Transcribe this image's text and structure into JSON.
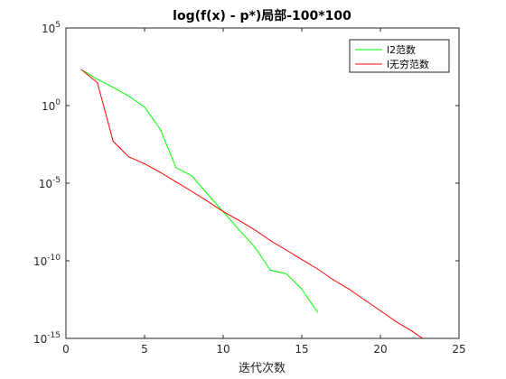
{
  "chart_data": {
    "type": "line",
    "title": "log(f(x) - p*)局部-100*100",
    "xlabel": "迭代次数",
    "ylabel": "",
    "xlim": [
      0,
      25
    ],
    "ylim": [
      1e-15,
      100000.0
    ],
    "yscale": "log",
    "grid": false,
    "legend_position": "top-right",
    "x_ticks": [
      0,
      5,
      10,
      15,
      20,
      25
    ],
    "x_tick_labels": [
      "0",
      "5",
      "10",
      "15",
      "20",
      "25"
    ],
    "y_ticks": [
      100000.0,
      1.0,
      1e-05,
      1e-10,
      1e-15
    ],
    "y_tick_labels": [
      {
        "base": "10",
        "exp": "5"
      },
      {
        "base": "10",
        "exp": "0"
      },
      {
        "base": "10",
        "exp": "-5"
      },
      {
        "base": "10",
        "exp": "-10"
      },
      {
        "base": "10",
        "exp": "-15"
      }
    ],
    "series": [
      {
        "name": "l2范数",
        "color": "#00ff00",
        "x": [
          1,
          2,
          3,
          4,
          5,
          6,
          7,
          8,
          9,
          10,
          11,
          12,
          13,
          14,
          15,
          16
        ],
        "y": [
          200,
          50,
          15,
          4,
          0.8,
          0.03,
          0.0001,
          3e-05,
          2e-06,
          1.5e-07,
          1e-08,
          8e-10,
          2.5e-11,
          1.5e-11,
          1.5e-12,
          5e-14
        ]
      },
      {
        "name": "l无穷范数",
        "color": "#ff0000",
        "x": [
          1,
          2,
          3,
          4,
          5,
          6,
          7,
          8,
          9,
          10,
          11,
          12,
          13,
          14,
          15,
          16,
          17,
          18,
          19,
          20,
          21,
          22,
          23,
          24
        ],
        "y": [
          200,
          30,
          0.005,
          0.0005,
          0.00018,
          5e-05,
          1.2e-05,
          3e-06,
          7e-07,
          1.5e-07,
          4e-08,
          1e-08,
          2e-09,
          5e-10,
          1.2e-10,
          3e-11,
          6e-12,
          1.5e-12,
          3e-13,
          6e-14,
          1.2e-14,
          3e-15,
          6e-16,
          3e-17
        ]
      }
    ]
  }
}
